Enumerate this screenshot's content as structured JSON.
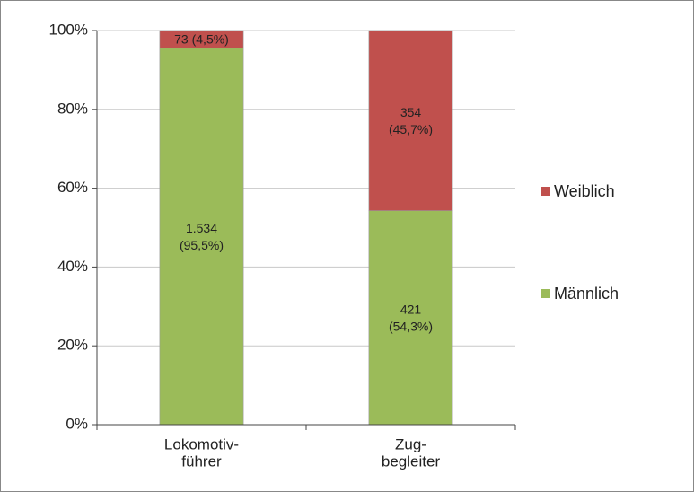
{
  "chart_data": {
    "type": "stacked_bar",
    "categories": [
      "Lokomotiv-\nführer",
      "Zug-\nbegleiter"
    ],
    "series": [
      {
        "name": "Männlich",
        "color": "#9bbb59",
        "values": [
          95.5,
          54.3
        ],
        "value_labels": [
          "1.534\n(95,5%)",
          "421\n(54,3%)"
        ]
      },
      {
        "name": "Weiblich",
        "color": "#c0504d",
        "values": [
          4.5,
          45.7
        ],
        "value_labels": [
          "73 (4,5%)",
          "354\n(45,7%)"
        ]
      }
    ],
    "ylim": [
      0,
      100
    ],
    "yticks": [
      {
        "value": 0,
        "label": "0%"
      },
      {
        "value": 20,
        "label": "20%"
      },
      {
        "value": 40,
        "label": "40%"
      },
      {
        "value": 60,
        "label": "60%"
      },
      {
        "value": 80,
        "label": "80%"
      },
      {
        "value": 100,
        "label": "100%"
      }
    ],
    "grid": true,
    "legend": "right"
  }
}
